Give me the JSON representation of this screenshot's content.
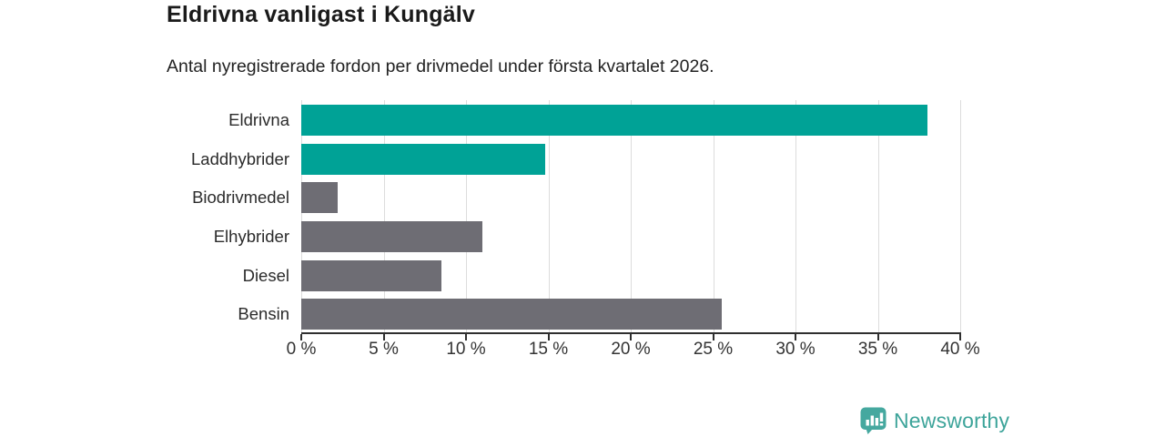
{
  "header": {
    "title": "Eldrivna vanligast i Kungälv",
    "subtitle": "Antal nyregistrerade fordon per drivmedel under första kvartalet 2026."
  },
  "chart_data": {
    "type": "bar",
    "orientation": "horizontal",
    "title": "Eldrivna vanligast i Kungälv",
    "subtitle": "Antal nyregistrerade fordon per drivmedel under första kvartalet 2026.",
    "categories": [
      "Eldrivna",
      "Laddhybrider",
      "Biodrivmedel",
      "Elhybrider",
      "Diesel",
      "Bensin"
    ],
    "values": [
      38,
      14.8,
      2.2,
      11,
      8.5,
      25.5
    ],
    "unit": "%",
    "bar_colors": [
      "#00a296",
      "#00a296",
      "#6e6d74",
      "#6e6d74",
      "#6e6d74",
      "#6e6d74"
    ],
    "accent_color": "#00a296",
    "neutral_color": "#6e6d74",
    "xlim": [
      0,
      40
    ],
    "x_ticks": [
      0,
      5,
      10,
      15,
      20,
      25,
      30,
      35,
      40
    ],
    "x_tick_labels": [
      "0 %",
      "5 %",
      "10 %",
      "15 %",
      "20 %",
      "25 %",
      "30 %",
      "35 %",
      "40 %"
    ],
    "grid": "vertical",
    "legend": "none"
  },
  "footer": {
    "brand": "Newsworthy",
    "brand_color": "#3da49a",
    "logo_icon": "newsworthy-badge-bar-chart-icon"
  }
}
